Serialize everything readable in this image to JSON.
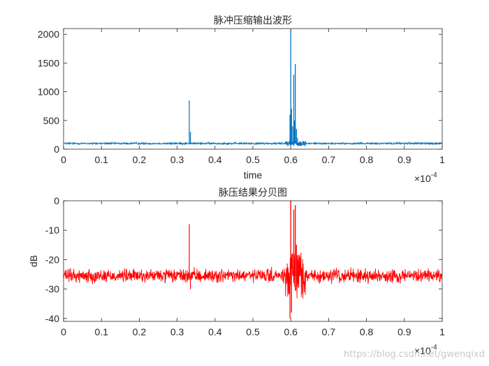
{
  "chart_data": [
    {
      "type": "line",
      "title": "脉冲压缩输出波形",
      "xlabel": "time",
      "ylabel": "",
      "xlim": [
        0,
        1
      ],
      "ylim": [
        0,
        2100
      ],
      "x_exponent_label": "×10",
      "x_exponent_power": "-4",
      "xticks": [
        0,
        0.1,
        0.2,
        0.3,
        0.4,
        0.5,
        0.6,
        0.7,
        0.8,
        0.9,
        1
      ],
      "xtick_labels": [
        "0",
        "0.1",
        "0.2",
        "0.3",
        "0.4",
        "0.5",
        "0.6",
        "0.7",
        "0.8",
        "0.9",
        "1"
      ],
      "yticks": [
        0,
        500,
        1000,
        1500,
        2000
      ],
      "ytick_labels": [
        "0",
        "500",
        "1000",
        "1500",
        "2000"
      ],
      "grid": false,
      "series": [
        {
          "color": "#0072bd",
          "baseline": 100,
          "noise": 15,
          "x": [
            0.332,
            0.335,
            0.598,
            0.6,
            0.602,
            0.605,
            0.608,
            0.61,
            0.612,
            0.615,
            0.618
          ],
          "values": [
            850,
            300,
            600,
            2080,
            700,
            400,
            1300,
            500,
            1480,
            350,
            200
          ]
        }
      ]
    },
    {
      "type": "line",
      "title": "脉压结果分贝图",
      "xlabel": "",
      "ylabel": "dB",
      "xlim": [
        0,
        1
      ],
      "ylim": [
        -41,
        0
      ],
      "x_exponent_label": "×10",
      "x_exponent_power": "-4",
      "xticks": [
        0,
        0.1,
        0.2,
        0.3,
        0.4,
        0.5,
        0.6,
        0.7,
        0.8,
        0.9,
        1
      ],
      "xtick_labels": [
        "0",
        "0.1",
        "0.2",
        "0.3",
        "0.4",
        "0.5",
        "0.6",
        "0.7",
        "0.8",
        "0.9",
        "1"
      ],
      "yticks": [
        0,
        -10,
        -20,
        -30,
        -40
      ],
      "ytick_labels": [
        "0",
        "-10",
        "-20",
        "-30",
        "-40"
      ],
      "grid": false,
      "series": [
        {
          "color": "#ff0000",
          "baseline": -25.5,
          "noise": 2,
          "x": [
            0.332,
            0.335,
            0.598,
            0.6,
            0.602,
            0.605,
            0.608,
            0.61,
            0.612,
            0.615,
            0.618
          ],
          "values": [
            -8,
            -30,
            -40,
            0,
            -38,
            -18,
            -3,
            -22,
            -1.5,
            -15,
            -20
          ]
        }
      ]
    }
  ],
  "watermark": "https://blog.csdn.net/gwenqixd"
}
